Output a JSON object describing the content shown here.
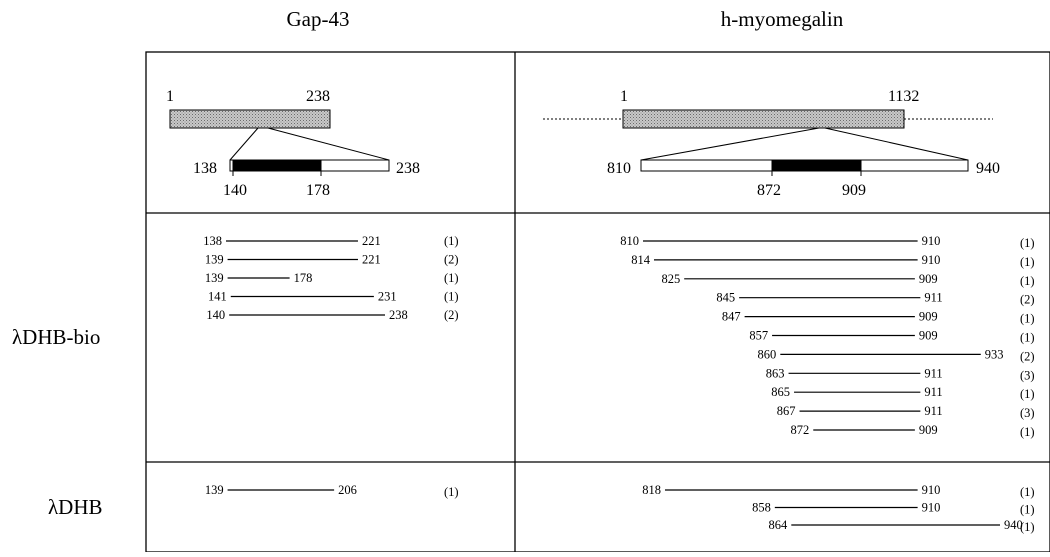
{
  "headers": {
    "left": "Gap-43",
    "right": "h-myomegalin"
  },
  "row_labels": {
    "bio": "λDHB-bio",
    "plain": "λDHB"
  },
  "colors": {
    "protein_fill": "#bdbdbd",
    "region_fill": "#000000",
    "line": "#000000"
  },
  "gap43_schematic": {
    "full_start": "1",
    "full_end": "238",
    "zoom_start": "138",
    "zoom_end": "238",
    "region_start": "140",
    "region_end": "178"
  },
  "myo_schematic": {
    "full_start": "1",
    "full_end": "1132",
    "zoom_start": "810",
    "zoom_end": "940",
    "region_start": "872",
    "region_end": "909"
  },
  "gap43_bio": [
    {
      "start": "138",
      "end": "221",
      "count": "(1)"
    },
    {
      "start": "139",
      "end": "221",
      "count": "(2)"
    },
    {
      "start": "139",
      "end": "178",
      "count": "(1)"
    },
    {
      "start": "141",
      "end": "231",
      "count": "(1)"
    },
    {
      "start": "140",
      "end": "238",
      "count": "(2)"
    }
  ],
  "myo_bio": [
    {
      "start": "810",
      "end": "910",
      "count": "(1)"
    },
    {
      "start": "814",
      "end": "910",
      "count": "(1)"
    },
    {
      "start": "825",
      "end": "909",
      "count": "(1)"
    },
    {
      "start": "845",
      "end": "911",
      "count": "(2)"
    },
    {
      "start": "847",
      "end": "909",
      "count": "(1)"
    },
    {
      "start": "857",
      "end": "909",
      "count": "(1)"
    },
    {
      "start": "860",
      "end": "933",
      "count": "(2)"
    },
    {
      "start": "863",
      "end": "911",
      "count": "(3)"
    },
    {
      "start": "865",
      "end": "911",
      "count": "(1)"
    },
    {
      "start": "867",
      "end": "911",
      "count": "(3)"
    },
    {
      "start": "872",
      "end": "909",
      "count": "(1)"
    }
  ],
  "gap43_plain": [
    {
      "start": "139",
      "end": "206",
      "count": "(1)"
    }
  ],
  "myo_plain": [
    {
      "start": "818",
      "end": "910",
      "count": "(1)"
    },
    {
      "start": "858",
      "end": "910",
      "count": "(1)"
    },
    {
      "start": "864",
      "end": "940",
      "count": "(1)"
    }
  ]
}
